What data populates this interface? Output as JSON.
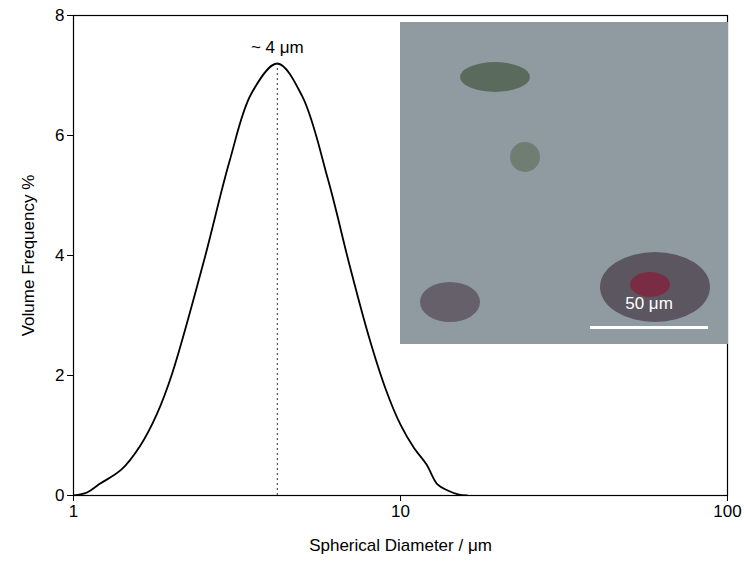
{
  "chart_data": {
    "type": "line",
    "x_label": "Spherical Diameter / μm",
    "y_label": "Volume Frequency %",
    "x": [
      1.0,
      1.1,
      1.2,
      1.4,
      1.6,
      1.8,
      2.0,
      2.5,
      3.0,
      3.5,
      4.2,
      5.0,
      6.0,
      7.0,
      8.0,
      9.0,
      10,
      11,
      12,
      13,
      14,
      15,
      16
    ],
    "values": [
      0,
      0.05,
      0.19,
      0.43,
      0.83,
      1.36,
      2.02,
      3.89,
      5.57,
      6.7,
      7.2,
      6.66,
      5.27,
      3.82,
      2.65,
      1.78,
      1.18,
      0.79,
      0.52,
      0.18,
      0.08,
      0.02,
      0
    ],
    "color": "#000000",
    "xlim": [
      1,
      100
    ],
    "ylim": [
      0,
      8
    ],
    "xticks": [
      1,
      10,
      100
    ],
    "yticks": [
      0,
      2,
      4,
      6,
      8
    ],
    "log": "x",
    "grid": false,
    "annotations": [
      {
        "text": "~ 4 μm",
        "x": 4.2,
        "y": 7.2,
        "line_style": "dotted"
      },
      {
        "text": "50 μm"
      }
    ]
  }
}
